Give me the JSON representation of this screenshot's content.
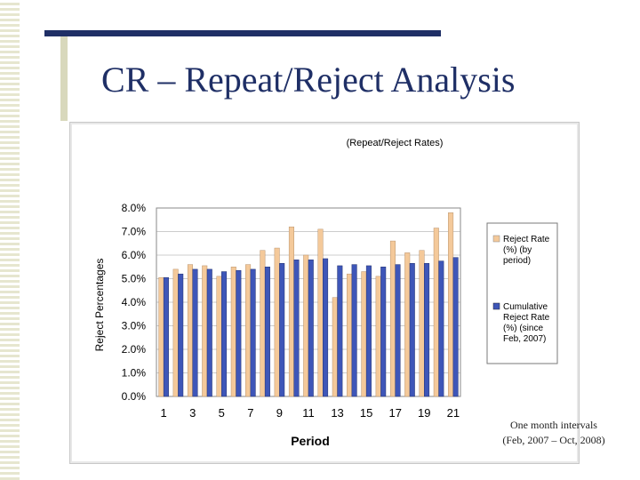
{
  "slide": {
    "title": "CR – Repeat/Reject Analysis",
    "note_line1": "One month intervals",
    "note_line2": "(Feb, 2007 – Oct, 2008)"
  },
  "colors": {
    "title": "#1f2f66",
    "series_reject": "#f4c99a",
    "series_cumulative": "#3e56b8",
    "plot_grid": "#9a9a9a"
  },
  "chart_data": {
    "type": "bar",
    "title": "(Repeat/Reject Rates)",
    "xlabel": "Period",
    "ylabel": "Reject Percentages",
    "ylim": [
      0,
      8
    ],
    "yticks": [
      "0.0%",
      "1.0%",
      "2.0%",
      "3.0%",
      "4.0%",
      "5.0%",
      "6.0%",
      "7.0%",
      "8.0%"
    ],
    "xticks": [
      "1",
      "3",
      "5",
      "7",
      "9",
      "11",
      "13",
      "15",
      "17",
      "19",
      "21"
    ],
    "categories": [
      1,
      2,
      3,
      4,
      5,
      6,
      7,
      8,
      9,
      10,
      11,
      12,
      13,
      14,
      15,
      16,
      17,
      18,
      19,
      20,
      21
    ],
    "grid": true,
    "legend_position": "right",
    "series": [
      {
        "name": "Reject Rate (%) (by period)",
        "legend_lines": [
          "Reject Rate",
          "(%) (by",
          "period)"
        ],
        "values": [
          5.05,
          5.4,
          5.6,
          5.55,
          5.1,
          5.5,
          5.6,
          6.2,
          6.3,
          7.2,
          6.0,
          7.1,
          4.2,
          5.2,
          5.3,
          5.1,
          6.6,
          6.1,
          6.2,
          7.15,
          7.8
        ]
      },
      {
        "name": "Cumulative Reject Rate (%) (since Feb, 2007)",
        "legend_lines": [
          "Cumulative",
          "Reject Rate",
          "(%) (since",
          "Feb, 2007)"
        ],
        "values": [
          5.05,
          5.2,
          5.4,
          5.4,
          5.3,
          5.35,
          5.4,
          5.5,
          5.65,
          5.8,
          5.8,
          5.85,
          5.55,
          5.6,
          5.55,
          5.5,
          5.6,
          5.65,
          5.65,
          5.75,
          5.9
        ]
      }
    ]
  }
}
